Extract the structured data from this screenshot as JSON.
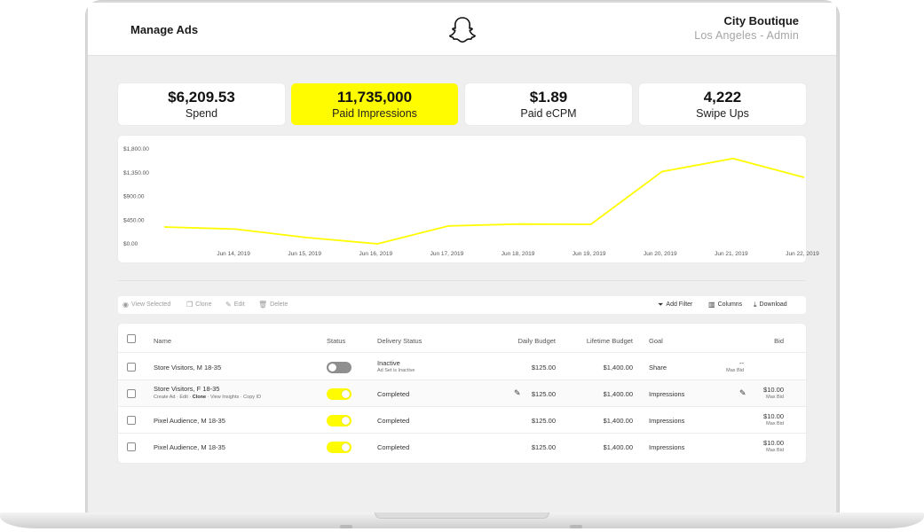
{
  "header": {
    "title": "Manage Ads",
    "account_name": "City Boutique",
    "account_sub": "Los Angeles - Admin"
  },
  "kpis": [
    {
      "value": "$6,209.53",
      "label": "Spend"
    },
    {
      "value": "11,735,000",
      "label": "Paid Impressions"
    },
    {
      "value": "$1.89",
      "label": "Paid eCPM"
    },
    {
      "value": "4,222",
      "label": "Swipe Ups"
    }
  ],
  "chart_data": {
    "type": "line",
    "x": [
      "",
      "Jun 14, 2019",
      "Jun 15, 2019",
      "Jun 16, 2019",
      "Jun 17, 2019",
      "Jun 18, 2019",
      "Jun 19, 2019",
      "Jun 20, 2019",
      "Jun 21, 2019",
      "Jun 22, 2019"
    ],
    "series": [
      {
        "values": [
          320,
          280,
          120,
          0,
          340,
          375,
          370,
          1370,
          1620,
          1260
        ]
      }
    ],
    "y_ticks": [
      "$1,800.00",
      "$1,350.00",
      "$900.00",
      "$450.00",
      "$0.00"
    ],
    "y_tick_values": [
      1800,
      1350,
      900,
      450,
      0
    ],
    "ylim": [
      0,
      1800
    ],
    "line_color": "#fffc00",
    "grid": false
  },
  "toolbar": {
    "view_selected": "View Selected",
    "clone": "Clone",
    "edit": "Edit",
    "delete": "Delete",
    "add_filter": "Add Filter",
    "columns": "Columns",
    "download": "Download"
  },
  "table": {
    "headers": {
      "name": "Name",
      "status": "Status",
      "delivery": "Delivery Status",
      "daily": "Daily Budget",
      "lifetime": "Lifetime Budget",
      "goal": "Goal",
      "bid": "Bid"
    },
    "rows": [
      {
        "name": "Store Visitors, M 18-35",
        "status": "off",
        "delivery": "Inactive",
        "delivery_sub": "Ad Set is Inactive",
        "daily": "$125.00",
        "lifetime": "$1,400.00",
        "goal": "Share",
        "bid": "--",
        "bid_sub": "Max Bid"
      },
      {
        "name": "Store Visitors, F 18-35",
        "status": "on",
        "delivery": "Completed",
        "daily": "$125.00",
        "lifetime": "$1,400.00",
        "goal": "Impressions",
        "bid": "$10.00",
        "bid_sub": "Max Bid",
        "actions": {
          "create": "Create Ad",
          "edit": "Edit",
          "clone": "Clone",
          "insights": "View Insights",
          "copy": "Copy ID",
          "sep": "·"
        }
      },
      {
        "name": "Pixel Audience, M 18-35",
        "status": "on",
        "delivery": "Completed",
        "daily": "$125.00",
        "lifetime": "$1,400.00",
        "goal": "Impressions",
        "bid": "$10.00",
        "bid_sub": "Max Bid"
      },
      {
        "name": "Pixel Audience, M 18-35",
        "status": "on",
        "delivery": "Completed",
        "daily": "$125.00",
        "lifetime": "$1,400.00",
        "goal": "Impressions",
        "bid": "$10.00",
        "bid_sub": "Max Bid"
      }
    ]
  },
  "colors": {
    "accent": "#fffc00",
    "muted_text": "#a6a6a6",
    "background": "#efefef"
  }
}
